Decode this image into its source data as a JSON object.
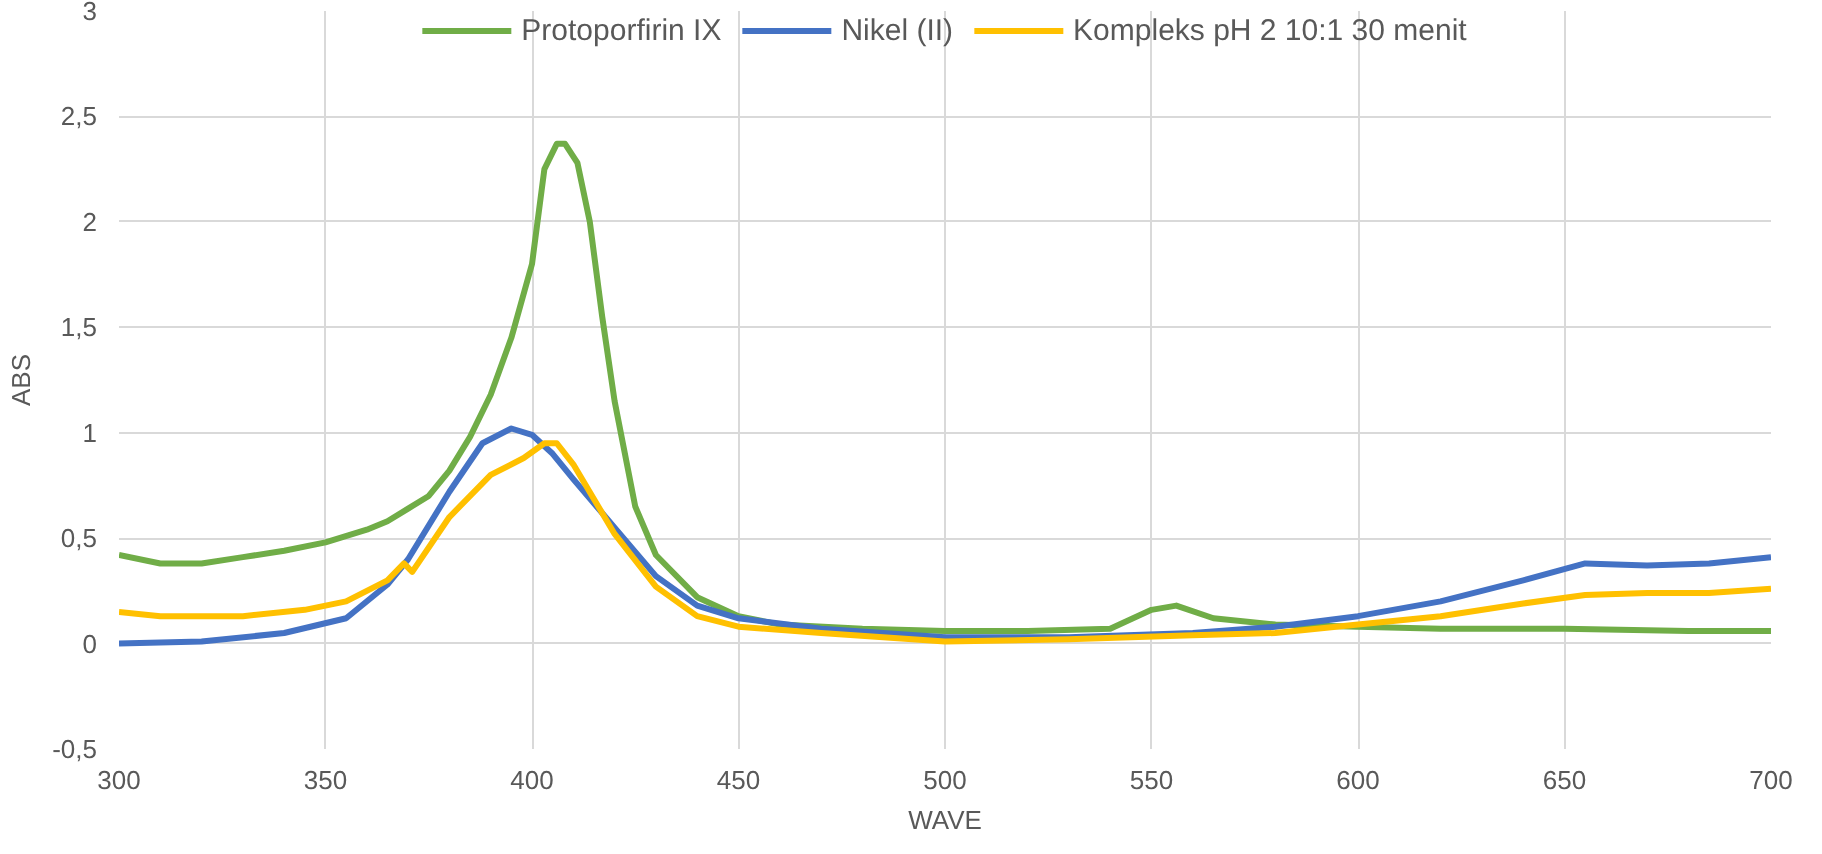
{
  "chart_data": {
    "type": "line",
    "xlabel": "WAVE",
    "ylabel": "ABS",
    "xlim": [
      300,
      700
    ],
    "ylim": [
      -0.5,
      3
    ],
    "xticks": [
      300,
      350,
      400,
      450,
      500,
      550,
      600,
      650,
      700
    ],
    "yticks": [
      {
        "value": -0.5,
        "label": "-0,5"
      },
      0,
      {
        "value": 0.5,
        "label": "0,5"
      },
      1,
      {
        "value": 1.5,
        "label": "1,5"
      },
      2,
      {
        "value": 2.5,
        "label": "2,5"
      },
      3
    ],
    "grid": true,
    "legend": "top",
    "line_style": "solid",
    "marker": "none",
    "series": [
      {
        "name": "Protoporfirin IX",
        "color": "#70ad47",
        "x": [
          300,
          310,
          320,
          330,
          340,
          350,
          360,
          365,
          370,
          375,
          380,
          385,
          390,
          395,
          400,
          403,
          406,
          408,
          411,
          414,
          417,
          420,
          425,
          430,
          440,
          450,
          460,
          480,
          500,
          520,
          540,
          550,
          556,
          565,
          580,
          600,
          620,
          650,
          680,
          700
        ],
        "values": [
          0.42,
          0.38,
          0.38,
          0.41,
          0.44,
          0.48,
          0.54,
          0.58,
          0.64,
          0.7,
          0.82,
          0.98,
          1.18,
          1.45,
          1.8,
          2.25,
          2.37,
          2.37,
          2.28,
          2.0,
          1.55,
          1.15,
          0.65,
          0.42,
          0.22,
          0.13,
          0.09,
          0.07,
          0.06,
          0.06,
          0.07,
          0.16,
          0.18,
          0.12,
          0.09,
          0.08,
          0.07,
          0.07,
          0.06,
          0.06
        ]
      },
      {
        "name": "Nikel (II)",
        "color": "#4472c4",
        "x": [
          300,
          320,
          340,
          355,
          365,
          370,
          380,
          388,
          395,
          400,
          405,
          410,
          420,
          430,
          440,
          450,
          470,
          500,
          530,
          560,
          580,
          600,
          620,
          640,
          655,
          670,
          685,
          700
        ],
        "values": [
          0.0,
          0.01,
          0.05,
          0.12,
          0.28,
          0.4,
          0.72,
          0.95,
          1.02,
          0.99,
          0.9,
          0.78,
          0.55,
          0.32,
          0.18,
          0.12,
          0.07,
          0.03,
          0.03,
          0.05,
          0.08,
          0.13,
          0.2,
          0.3,
          0.38,
          0.37,
          0.38,
          0.41
        ]
      },
      {
        "name": "Kompleks pH 2 10:1 30 menit",
        "color": "#ffc000",
        "x": [
          300,
          310,
          330,
          345,
          355,
          365,
          369,
          371,
          380,
          390,
          398,
          403,
          406,
          410,
          420,
          430,
          440,
          450,
          470,
          500,
          530,
          560,
          580,
          600,
          620,
          640,
          655,
          670,
          685,
          700
        ],
        "values": [
          0.15,
          0.13,
          0.13,
          0.16,
          0.2,
          0.3,
          0.38,
          0.34,
          0.6,
          0.8,
          0.88,
          0.95,
          0.95,
          0.85,
          0.52,
          0.27,
          0.13,
          0.08,
          0.05,
          0.01,
          0.02,
          0.04,
          0.05,
          0.09,
          0.13,
          0.19,
          0.23,
          0.24,
          0.24,
          0.26
        ]
      }
    ]
  }
}
